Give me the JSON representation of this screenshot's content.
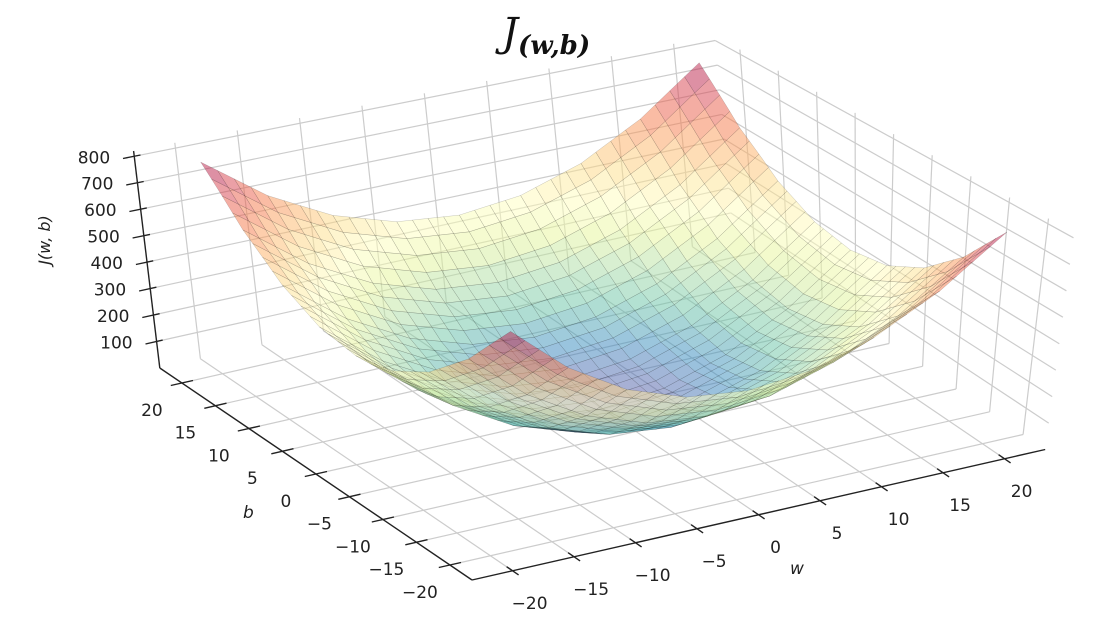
{
  "chart_data": {
    "type": "surface3d",
    "title": {
      "main": "J",
      "sub": "(w,b)"
    },
    "xlabel": "w",
    "ylabel": "b",
    "zlabel": "J(w, b)",
    "x_ticks": [
      "−20",
      "−15",
      "−10",
      "−5",
      "0",
      "5",
      "10",
      "15",
      "20"
    ],
    "x_tick_values": [
      -20,
      -15,
      -10,
      -5,
      0,
      5,
      10,
      15,
      20
    ],
    "y_ticks": [
      "−20",
      "−15",
      "−10",
      "−5",
      "0",
      "5",
      "10",
      "15",
      "20"
    ],
    "y_tick_values": [
      -20,
      -15,
      -10,
      -5,
      0,
      5,
      10,
      15,
      20
    ],
    "z_ticks": [
      "100",
      "200",
      "300",
      "400",
      "500",
      "600",
      "700",
      "800"
    ],
    "z_tick_values": [
      100,
      200,
      300,
      400,
      500,
      600,
      700,
      800
    ],
    "xlim": [
      -20,
      20
    ],
    "ylim": [
      -20,
      20
    ],
    "zlim": [
      0,
      800
    ],
    "grid": true,
    "colormap": "Spectral_r",
    "surface_alpha": 0.5,
    "w": [
      -20,
      -15,
      -10,
      -5,
      0,
      5,
      10,
      15,
      20
    ],
    "b": [
      -20,
      -15,
      -10,
      -5,
      0,
      5,
      10,
      15,
      20
    ],
    "z": [
      [
        800,
        625,
        500,
        425,
        400,
        425,
        500,
        625,
        800
      ],
      [
        625,
        450,
        325,
        250,
        225,
        250,
        325,
        450,
        625
      ],
      [
        500,
        325,
        200,
        125,
        100,
        125,
        200,
        325,
        500
      ],
      [
        425,
        250,
        125,
        50,
        25,
        50,
        125,
        250,
        425
      ],
      [
        400,
        225,
        100,
        25,
        0,
        25,
        100,
        225,
        400
      ],
      [
        425,
        250,
        125,
        50,
        25,
        50,
        125,
        250,
        425
      ],
      [
        500,
        325,
        200,
        125,
        100,
        125,
        200,
        325,
        500
      ],
      [
        625,
        450,
        325,
        250,
        225,
        250,
        325,
        450,
        625
      ],
      [
        800,
        625,
        500,
        425,
        400,
        425,
        500,
        625,
        800
      ]
    ],
    "colors": {
      "grid": "#cccccc",
      "axis": "#222222",
      "mesh": "#000000"
    }
  }
}
